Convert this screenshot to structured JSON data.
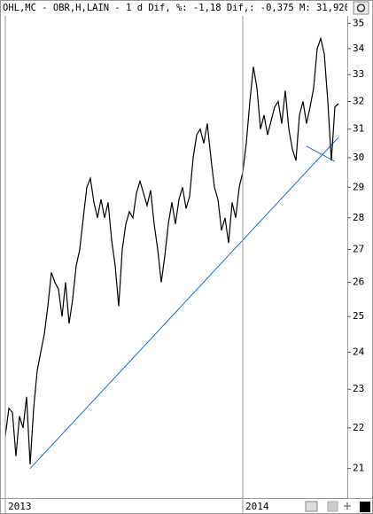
{
  "chart_data": {
    "type": "line",
    "title": "OHL,MC - OBR,H,LAIN -  1 d Dif, %: -1,18 Dif,: -0,375 M: 31,920",
    "log_scale": true,
    "ylim": [
      20.3,
      35.3
    ],
    "yticks": [
      21,
      22,
      23,
      24,
      25,
      26,
      27,
      28,
      29,
      30,
      31,
      32,
      33,
      34,
      35
    ],
    "categories": [
      "2013",
      null,
      null,
      null,
      null,
      null,
      null,
      null,
      null,
      null,
      null,
      null,
      null,
      null,
      null,
      null,
      null,
      null,
      null,
      null,
      null,
      null,
      null,
      null,
      null,
      null,
      null,
      null,
      null,
      null,
      null,
      null,
      null,
      null,
      null,
      null,
      null,
      null,
      null,
      null,
      null,
      null,
      null,
      null,
      null,
      null,
      null,
      null,
      null,
      null,
      null,
      null,
      null,
      null,
      null,
      null,
      null,
      null,
      null,
      null,
      null,
      null,
      null,
      null,
      null,
      null,
      null,
      "2014",
      null,
      null,
      null,
      null,
      null,
      null,
      null,
      null,
      null,
      null,
      null,
      null,
      null,
      null,
      null,
      null,
      null,
      null,
      null,
      null,
      null,
      null,
      null,
      null,
      null,
      null,
      null
    ],
    "series": [
      {
        "color": "#000000",
        "values": [
          21.8,
          22.5,
          22.4,
          21.3,
          22.3,
          22.0,
          22.8,
          21.1,
          22.5,
          23.5,
          24.0,
          24.5,
          25.3,
          26.3,
          26.0,
          25.8,
          25.0,
          26.0,
          24.8,
          25.5,
          26.5,
          27.0,
          28.0,
          29.0,
          29.3,
          28.5,
          28.0,
          28.6,
          28.0,
          28.5,
          27.3,
          26.5,
          25.3,
          27.0,
          27.8,
          28.2,
          28.0,
          28.8,
          29.2,
          28.8,
          28.4,
          28.9,
          27.8,
          27.0,
          26.0,
          26.8,
          27.8,
          28.5,
          27.8,
          28.6,
          29.0,
          28.3,
          28.7,
          30.0,
          30.8,
          31.0,
          30.5,
          31.2,
          30.0,
          29.0,
          28.6,
          27.6,
          28.0,
          27.2,
          28.5,
          28.0,
          29.0,
          29.5,
          30.5,
          32.0,
          33.3,
          32.5,
          31.0,
          31.5,
          30.8,
          31.3,
          31.8,
          32.0,
          31.2,
          32.4,
          31.0,
          30.3,
          29.9,
          31.5,
          32.0,
          31.2,
          31.8,
          32.5,
          34.0,
          34.4,
          33.8,
          32.0,
          29.9,
          31.8,
          31.92
        ]
      }
    ],
    "trendlines": [
      {
        "color": "#1f6fd0",
        "values": [
          null,
          null,
          null,
          null,
          null,
          null,
          null,
          21,
          null,
          null,
          null,
          null,
          null,
          null,
          null,
          null,
          null,
          null,
          null,
          null,
          null,
          null,
          null,
          null,
          null,
          null,
          null,
          null,
          null,
          null,
          null,
          null,
          null,
          null,
          null,
          null,
          null,
          null,
          null,
          null,
          null,
          null,
          null,
          null,
          null,
          null,
          null,
          null,
          null,
          null,
          null,
          null,
          null,
          null,
          null,
          null,
          null,
          null,
          null,
          null,
          null,
          null,
          null,
          null,
          null,
          null,
          null,
          null,
          null,
          null,
          null,
          null,
          null,
          null,
          null,
          null,
          null,
          null,
          null,
          null,
          null,
          null,
          null,
          null,
          null,
          null,
          null,
          null,
          null,
          null,
          null,
          null,
          null,
          null,
          30.71
        ]
      },
      {
        "color": "#1f6fd0",
        "values": [
          null,
          null,
          null,
          null,
          null,
          null,
          null,
          null,
          null,
          null,
          null,
          null,
          null,
          null,
          null,
          null,
          null,
          null,
          null,
          null,
          null,
          null,
          null,
          null,
          null,
          null,
          null,
          null,
          null,
          null,
          null,
          null,
          null,
          null,
          null,
          null,
          null,
          null,
          null,
          null,
          null,
          null,
          null,
          null,
          null,
          null,
          null,
          null,
          null,
          null,
          null,
          null,
          null,
          null,
          null,
          null,
          null,
          null,
          null,
          null,
          null,
          null,
          null,
          null,
          null,
          null,
          null,
          null,
          null,
          null,
          null,
          null,
          null,
          null,
          null,
          null,
          null,
          null,
          null,
          null,
          null,
          null,
          null,
          null,
          null,
          30.4,
          null,
          null,
          null,
          null,
          null,
          null,
          null,
          29.87,
          null
        ]
      }
    ]
  }
}
